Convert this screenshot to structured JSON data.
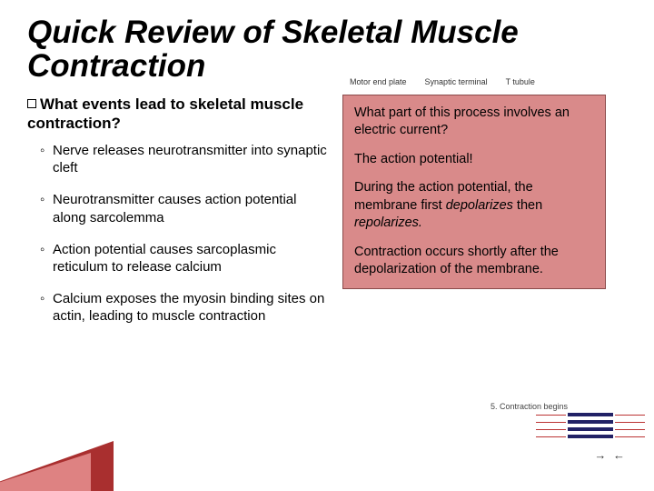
{
  "title": "Quick Review of Skeletal Muscle Contraction",
  "question": "What events lead to skeletal muscle contraction?",
  "bullets": [
    "Nerve releases neurotransmitter into synaptic cleft",
    "Neurotransmitter causes action potential along sarcolemma",
    "Action potential causes sarcoplasmic reticulum to release calcium",
    "Calcium exposes the myosin binding sites on actin, leading to muscle contraction"
  ],
  "callout": {
    "p1": "What part of this process involves an electric current?",
    "p2": "The action potential!",
    "p3_pre": "During the action potential, the membrane first ",
    "p3_em1": "depolarizes",
    "p3_mid": " then ",
    "p3_em2": "repolarizes.",
    "p4": "Contraction occurs shortly after the depolarization of the membrane."
  },
  "diagram_labels": {
    "l1": "Motor end plate",
    "l2": "Synaptic terminal",
    "l3": "T tubule"
  },
  "diagram_caption": "5. Contraction begins",
  "colors": {
    "callout_bg": "#d98a8a",
    "callout_border": "#8a4a4a",
    "triangle_dark": "#a01818",
    "triangle_light": "#e89090"
  }
}
